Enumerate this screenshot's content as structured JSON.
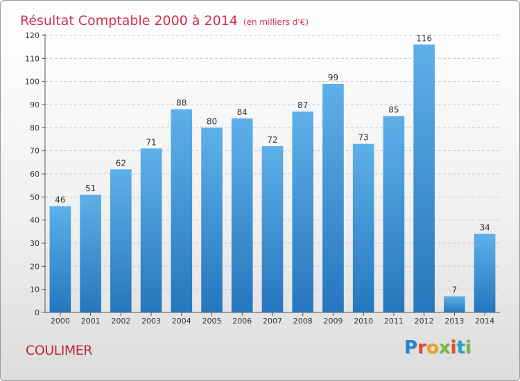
{
  "header": {
    "title": "Résultat Comptable 2000 à 2014",
    "subtitle": "(en milliers d'€)"
  },
  "footer": {
    "location": "COULIMER",
    "brand": "Proxiti",
    "brand_colors": [
      "#2a7fd0",
      "#e24a2a",
      "#f0a020",
      "#7ab83a",
      "#e24a2a",
      "#2a9fd0",
      "#7ab83a"
    ]
  },
  "chart_data": {
    "type": "bar",
    "title": "Résultat Comptable 2000 à 2014",
    "subtitle": "(en milliers d'€)",
    "xlabel": "",
    "ylabel": "",
    "categories": [
      "2000",
      "2001",
      "2002",
      "2003",
      "2004",
      "2005",
      "2006",
      "2007",
      "2008",
      "2009",
      "2010",
      "2011",
      "2012",
      "2013",
      "2014"
    ],
    "values": [
      46,
      51,
      62,
      71,
      88,
      80,
      84,
      72,
      87,
      99,
      73,
      85,
      116,
      7,
      34
    ],
    "ylim": [
      0,
      120
    ],
    "yticks": [
      0,
      10,
      20,
      30,
      40,
      50,
      60,
      70,
      80,
      90,
      100,
      110,
      120
    ],
    "grid": true,
    "legend": "none",
    "bar_color_light": "#5eb0ea",
    "bar_color_dark": "#2676bd",
    "grid_color": "#c8c8c8",
    "label_color": "#333333"
  }
}
